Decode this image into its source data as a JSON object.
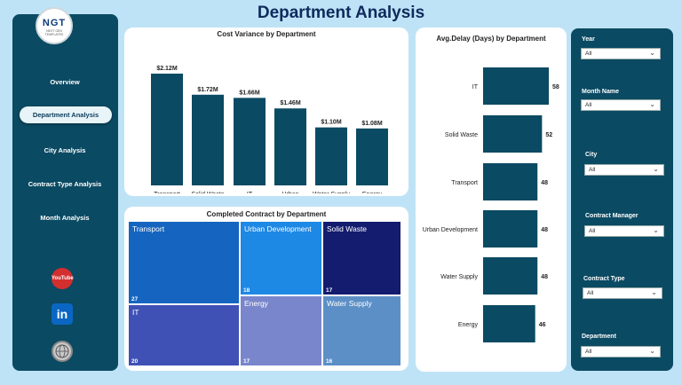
{
  "header": {
    "title": "Department Analysis"
  },
  "logo": {
    "main": "NGT",
    "sub": "NEXT GEN TEMPLATES"
  },
  "nav": [
    {
      "label": "Overview",
      "active": false
    },
    {
      "label": "Department Analysis",
      "active": true
    },
    {
      "label": "City Analysis",
      "active": false
    },
    {
      "label": "Contract Type Analysis",
      "active": false
    },
    {
      "label": "Month Analysis",
      "active": false
    }
  ],
  "social": {
    "youtube": "YouTube",
    "linkedin": "in"
  },
  "colors": {
    "bar": "#0b4a63",
    "panel": "#0b4a63",
    "background": "#bfe3f6",
    "title": "#0f2a5c"
  },
  "filters": [
    {
      "label": "Year",
      "value": "All"
    },
    {
      "label": "Month Name",
      "value": "All"
    },
    {
      "label": "City",
      "value": "All"
    },
    {
      "label": "Contract Manager",
      "value": "All"
    },
    {
      "label": "Contract Type",
      "value": "All"
    },
    {
      "label": "Department",
      "value": "All"
    }
  ],
  "chart_data": [
    {
      "type": "bar",
      "title": "Cost Variance by Department",
      "categories": [
        "Transport",
        "Solid Waste",
        "IT",
        "Urban Development",
        "Water Supply",
        "Energy"
      ],
      "values": [
        2.12,
        1.72,
        1.66,
        1.46,
        1.1,
        1.08
      ],
      "data_labels": [
        "$2.12M",
        "$1.72M",
        "$1.66M",
        "$1.46M",
        "$1.10M",
        "$1.08M"
      ],
      "unit": "$M"
    },
    {
      "type": "bar",
      "orientation": "horizontal",
      "title": "Avg.Delay (Days) by Department",
      "categories": [
        "IT",
        "Solid Waste",
        "Transport",
        "Urban Development",
        "Water Supply",
        "Energy"
      ],
      "values": [
        58,
        52,
        48,
        48,
        48,
        46
      ]
    },
    {
      "type": "treemap",
      "title": "Completed Contract by Department",
      "items": [
        {
          "label": "Transport",
          "value": 27,
          "color": "#1565c0"
        },
        {
          "label": "Urban Development",
          "value": 18,
          "color": "#1e88e5"
        },
        {
          "label": "Solid Waste",
          "value": 17,
          "color": "#131c6e"
        },
        {
          "label": "IT",
          "value": 20,
          "color": "#3f51b5"
        },
        {
          "label": "Energy",
          "value": 17,
          "color": "#7986cb"
        },
        {
          "label": "Water Supply",
          "value": 16,
          "color": "#5c8fc6"
        }
      ]
    }
  ]
}
